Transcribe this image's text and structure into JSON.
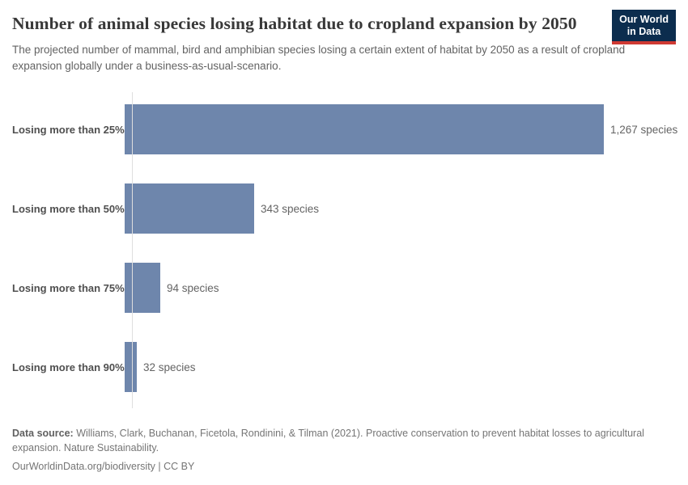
{
  "header": {
    "title": "Number of animal species losing habitat due to cropland expansion by 2050",
    "subtitle": "The projected number of mammal, bird and amphibian species losing a certain extent of habitat by 2050 as a result of cropland expansion globally under a business-as-usual-scenario.",
    "logo": {
      "line1": "Our World",
      "line2": "in Data"
    }
  },
  "chart_data": {
    "type": "bar",
    "orientation": "horizontal",
    "title": "Number of animal species losing habitat due to cropland expansion by 2050",
    "categories": [
      "Losing more than 25%",
      "Losing more than 50%",
      "Losing more than 75%",
      "Losing more than 90%"
    ],
    "values": [
      1267,
      343,
      94,
      32
    ],
    "value_labels": [
      "1,267 species",
      "343 species",
      "94 species",
      "32 species"
    ],
    "xlabel": "",
    "ylabel": "",
    "xlim": [
      0,
      1267
    ],
    "grid": false,
    "legend": false,
    "bar_color": "#6e86ac"
  },
  "footer": {
    "source_label": "Data source:",
    "source_text": " Williams, Clark, Buchanan, Ficetola, Rondinini, & Tilman (2021). Proactive conservation to prevent habitat losses to agricultural expansion. Nature Sustainability.",
    "citation_line": "OurWorldinData.org/biodiversity | CC BY"
  },
  "colors": {
    "bar": "#6e86ac",
    "logo_background": "#0c2d4e",
    "logo_accent": "#cf3a33",
    "axis_line": "#dedede"
  }
}
